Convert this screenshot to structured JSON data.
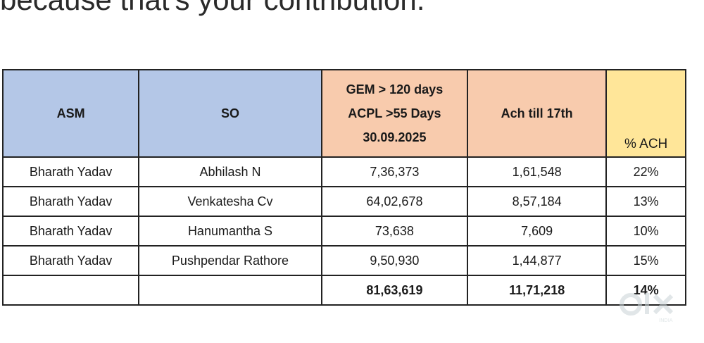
{
  "top_text": "because that's your contribution.",
  "table": {
    "headers": {
      "asm": "ASM",
      "so": "SO",
      "gem_lines": [
        "GEM > 120 days",
        "ACPL >55 Days",
        "30.09.2025"
      ],
      "ach": "Ach till 17th",
      "pct": "% ACH"
    },
    "rows": [
      {
        "asm": "Bharath Yadav",
        "so": "Abhilash N",
        "gem": "7,36,373",
        "ach": "1,61,548",
        "pct": "22%"
      },
      {
        "asm": "Bharath Yadav",
        "so": "Venkatesha Cv",
        "gem": "64,02,678",
        "ach": "8,57,184",
        "pct": "13%"
      },
      {
        "asm": "Bharath Yadav",
        "so": "Hanumantha S",
        "gem": "73,638",
        "ach": "7,609",
        "pct": "10%"
      },
      {
        "asm": "Bharath Yadav",
        "so": "Pushpendar Rathore",
        "gem": "9,50,930",
        "ach": "1,44,877",
        "pct": "15%"
      }
    ],
    "total": {
      "asm": "",
      "so": "",
      "gem": "81,63,619",
      "ach": "11,71,218",
      "pct": "14%"
    }
  },
  "colors": {
    "blue_header": "#b4c7e7",
    "peach_header": "#f8cbad",
    "yellow_header": "#ffe699"
  },
  "watermark": {
    "icon": "olx-logo-icon",
    "text": "INDIA"
  }
}
